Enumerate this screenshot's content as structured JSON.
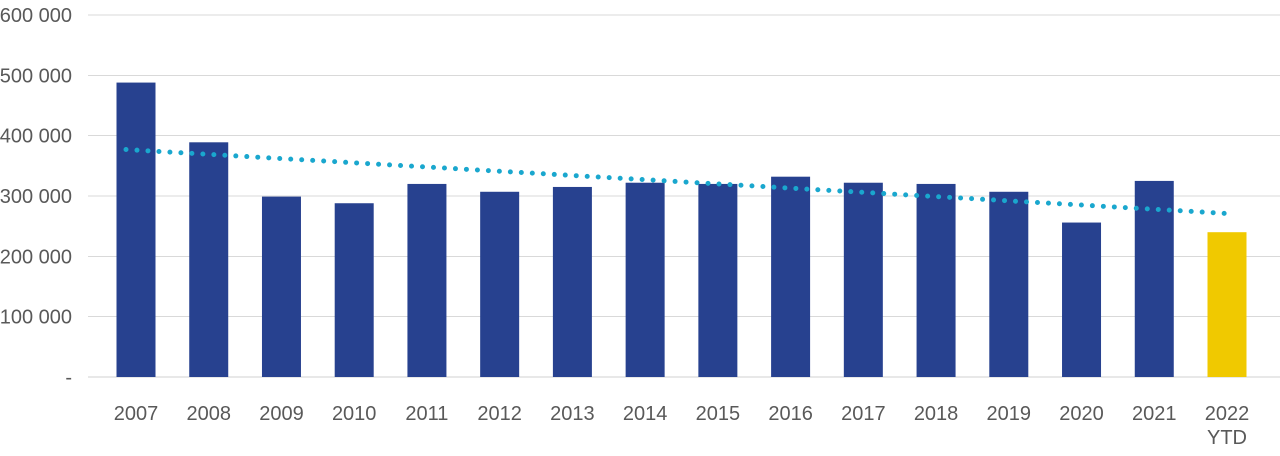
{
  "chart_data": {
    "type": "bar",
    "categories": [
      "2007",
      "2008",
      "2009",
      "2010",
      "2011",
      "2012",
      "2013",
      "2014",
      "2015",
      "2016",
      "2017",
      "2018",
      "2019",
      "2020",
      "2021",
      "2022"
    ],
    "sublabels": {
      "15": "YTD"
    },
    "values": [
      488000,
      389000,
      299000,
      288000,
      320000,
      307000,
      315000,
      322000,
      320000,
      332000,
      322000,
      320000,
      307000,
      256000,
      325000,
      240000
    ],
    "highlight_index": 15,
    "y_tick_values": [
      0,
      100000,
      200000,
      300000,
      400000,
      500000,
      600000
    ],
    "y_tick_labels": [
      "-",
      "100 000",
      "200 000",
      "300 000",
      "400 000",
      "500 000",
      "600 000"
    ],
    "ylim": [
      0,
      600000
    ],
    "grid": true,
    "legend": "none",
    "trend": {
      "type": "linear-dotted",
      "start_value": 377000,
      "end_value": 271000
    },
    "colors": {
      "bar": "#27418F",
      "highlight_bar": "#F0C900",
      "trend": "#1AA7CE",
      "gridline": "#D9D9D9",
      "axis_text": "#595959"
    }
  }
}
